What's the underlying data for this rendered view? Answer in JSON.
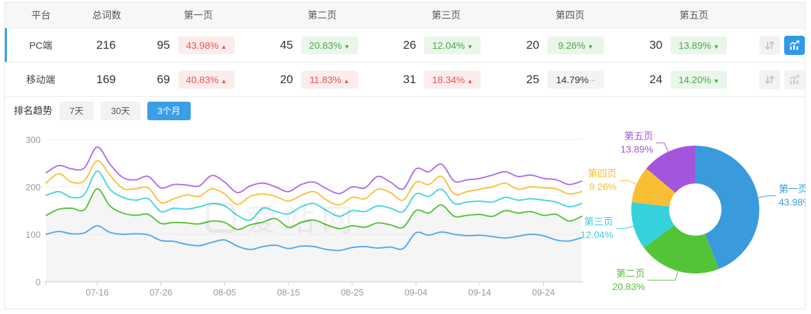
{
  "palette": {
    "accent_blue": "#2EA7E8",
    "active_button_blue": "#3B9FE6",
    "badge_up_bg": "#FBEDED",
    "badge_up_text": "#F05050",
    "badge_down_bg": "#EAF6E9",
    "badge_down_text": "#48A948",
    "badge_flat_bg": "#F3F3F3",
    "badge_flat_text": "#333333",
    "icon_gray": "#C3C3C3",
    "icon_active_bg": "#2F9BE8"
  },
  "table": {
    "columns": [
      "平台",
      "总词数",
      "第一页",
      "第二页",
      "第三页",
      "第四页",
      "第五页"
    ],
    "rows": [
      {
        "platform": "PC端",
        "selected": true,
        "total": "216",
        "chart_active": true,
        "pages": [
          {
            "count": "95",
            "pct": "43.98%",
            "trend": "up"
          },
          {
            "count": "45",
            "pct": "20.83%",
            "trend": "down"
          },
          {
            "count": "26",
            "pct": "12.04%",
            "trend": "down"
          },
          {
            "count": "20",
            "pct": "9.26%",
            "trend": "down"
          },
          {
            "count": "30",
            "pct": "13.89%",
            "trend": "down"
          }
        ]
      },
      {
        "platform": "移动端",
        "selected": false,
        "total": "169",
        "chart_active": false,
        "pages": [
          {
            "count": "69",
            "pct": "40.83%",
            "trend": "up"
          },
          {
            "count": "20",
            "pct": "11.83%",
            "trend": "up"
          },
          {
            "count": "31",
            "pct": "18.34%",
            "trend": "up"
          },
          {
            "count": "25",
            "pct": "14.79%",
            "trend": "flat"
          },
          {
            "count": "24",
            "pct": "14.20%",
            "trend": "down"
          }
        ]
      }
    ]
  },
  "trend_section": {
    "title": "排名趋势",
    "ranges": [
      {
        "label": "7天",
        "active": false
      },
      {
        "label": "30天",
        "active": false
      },
      {
        "label": "3个月",
        "active": true
      }
    ],
    "watermark": "爱站网"
  },
  "chart_data": [
    {
      "type": "line",
      "title": "排名趋势 (3个月)",
      "ylim": [
        0,
        300
      ],
      "yticks": [
        0,
        100,
        200,
        300
      ],
      "x_ticks": [
        "07-16",
        "07-26",
        "08-05",
        "08-15",
        "08-25",
        "09-04",
        "09-14",
        "09-24"
      ],
      "tick_indices": [
        4,
        9,
        14,
        19,
        24,
        29,
        34,
        39
      ],
      "grid": true,
      "legend_position": "none",
      "area_fill": "#f5f5f5",
      "series": [
        {
          "name": "第一页",
          "color": "#58A9E9",
          "area": false,
          "values": [
            100,
            106,
            101,
            103,
            118,
            104,
            100,
            101,
            99,
            87,
            85,
            79,
            76,
            83,
            88,
            75,
            68,
            74,
            77,
            70,
            75,
            74,
            68,
            66,
            72,
            74,
            71,
            73,
            70,
            103,
            98,
            105,
            100,
            97,
            98,
            95,
            92,
            96,
            100,
            97,
            88,
            86,
            93
          ]
        },
        {
          "name": "第二页",
          "color": "#5CC13D",
          "area": true,
          "values": [
            140,
            153,
            155,
            152,
            196,
            160,
            145,
            140,
            142,
            123,
            125,
            124,
            122,
            128,
            125,
            110,
            120,
            126,
            133,
            115,
            125,
            130,
            120,
            112,
            118,
            115,
            124,
            120,
            115,
            150,
            145,
            162,
            138,
            140,
            142,
            138,
            150,
            145,
            148,
            140,
            142,
            128,
            138
          ]
        },
        {
          "name": "第三页",
          "color": "#45D6E2",
          "area": false,
          "values": [
            182,
            190,
            178,
            184,
            233,
            195,
            178,
            172,
            175,
            148,
            155,
            153,
            158,
            165,
            160,
            140,
            130,
            155,
            148,
            143,
            158,
            165,
            150,
            138,
            150,
            148,
            160,
            155,
            148,
            185,
            180,
            195,
            165,
            168,
            170,
            168,
            178,
            172,
            175,
            172,
            168,
            158,
            165
          ]
        },
        {
          "name": "第四页",
          "color": "#F9C23C",
          "area": false,
          "values": [
            208,
            228,
            210,
            213,
            255,
            225,
            197,
            196,
            198,
            167,
            175,
            183,
            180,
            196,
            185,
            163,
            180,
            185,
            180,
            170,
            182,
            190,
            172,
            162,
            178,
            175,
            195,
            188,
            172,
            210,
            205,
            222,
            185,
            190,
            195,
            200,
            208,
            195,
            200,
            198,
            196,
            185,
            190
          ]
        },
        {
          "name": "第五页",
          "color": "#B46FE4",
          "area": false,
          "values": [
            230,
            245,
            238,
            240,
            284,
            248,
            220,
            215,
            222,
            198,
            205,
            204,
            202,
            224,
            210,
            188,
            202,
            208,
            200,
            190,
            205,
            210,
            196,
            186,
            200,
            198,
            222,
            210,
            196,
            238,
            232,
            248,
            212,
            215,
            218,
            225,
            232,
            222,
            225,
            218,
            215,
            205,
            212
          ]
        }
      ]
    },
    {
      "type": "pie",
      "donut": true,
      "label_suffix": "%",
      "slices": [
        {
          "label": "第一页",
          "value": 43.98,
          "color": "#3A9BDC"
        },
        {
          "label": "第二页",
          "value": 20.83,
          "color": "#53C437"
        },
        {
          "label": "第三页",
          "value": 12.04,
          "color": "#36D1DC"
        },
        {
          "label": "第四页",
          "value": 9.26,
          "color": "#F9BE33"
        },
        {
          "label": "第五页",
          "value": 13.89,
          "color": "#A455DE"
        }
      ]
    }
  ]
}
